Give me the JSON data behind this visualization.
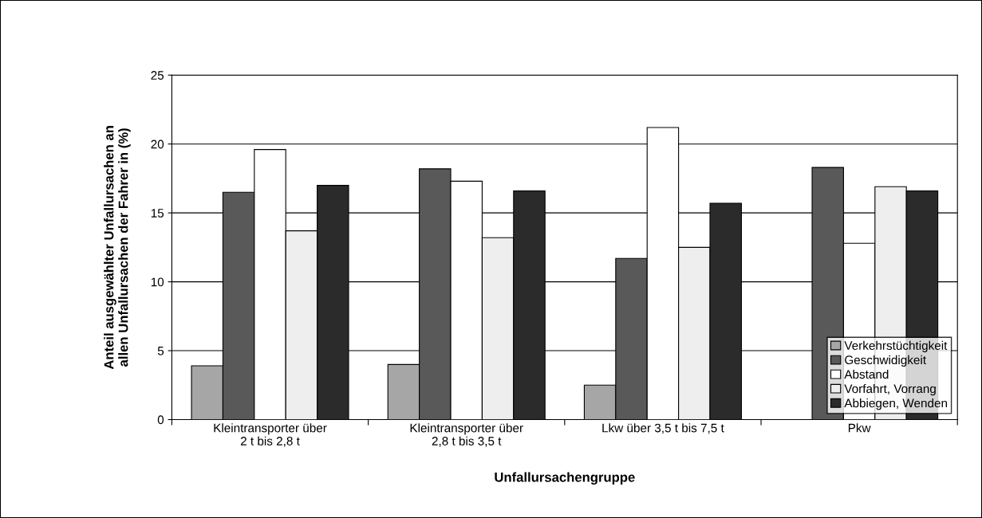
{
  "chart_data": {
    "type": "bar",
    "xlabel": "Unfallursachengruppe",
    "ylabel": "Anteil ausgewählter Unfallursachen an\nallen Unfallursachen der Fahrer in (%)",
    "categories": [
      "Kleintransporter über\n2 t bis 2,8 t",
      "Kleintransporter über\n2,8 t bis 3,5 t",
      "Lkw über 3,5 t bis 7,5 t",
      "Pkw"
    ],
    "series": [
      {
        "name": "Verkehrstüchtigkeit",
        "color": "#a6a6a6",
        "values": [
          3.9,
          4.0,
          2.5,
          null
        ]
      },
      {
        "name": "Geschwidigkeit",
        "color": "#595959",
        "values": [
          16.5,
          18.2,
          11.7,
          18.3
        ]
      },
      {
        "name": "Abstand",
        "color": "#ffffff",
        "values": [
          19.6,
          17.3,
          21.2,
          12.8
        ]
      },
      {
        "name": "Vorfahrt, Vorrang",
        "color": "#eeeeee",
        "values": [
          13.7,
          13.2,
          12.5,
          16.9
        ]
      },
      {
        "name": "Abbiegen, Wenden",
        "color": "#2b2b2b",
        "values": [
          17.0,
          16.6,
          15.7,
          16.6
        ]
      }
    ],
    "ylim": [
      0,
      25
    ],
    "yticks": [
      0,
      5,
      10,
      15,
      20,
      25
    ],
    "grid": "y",
    "legend": "bottom right"
  }
}
